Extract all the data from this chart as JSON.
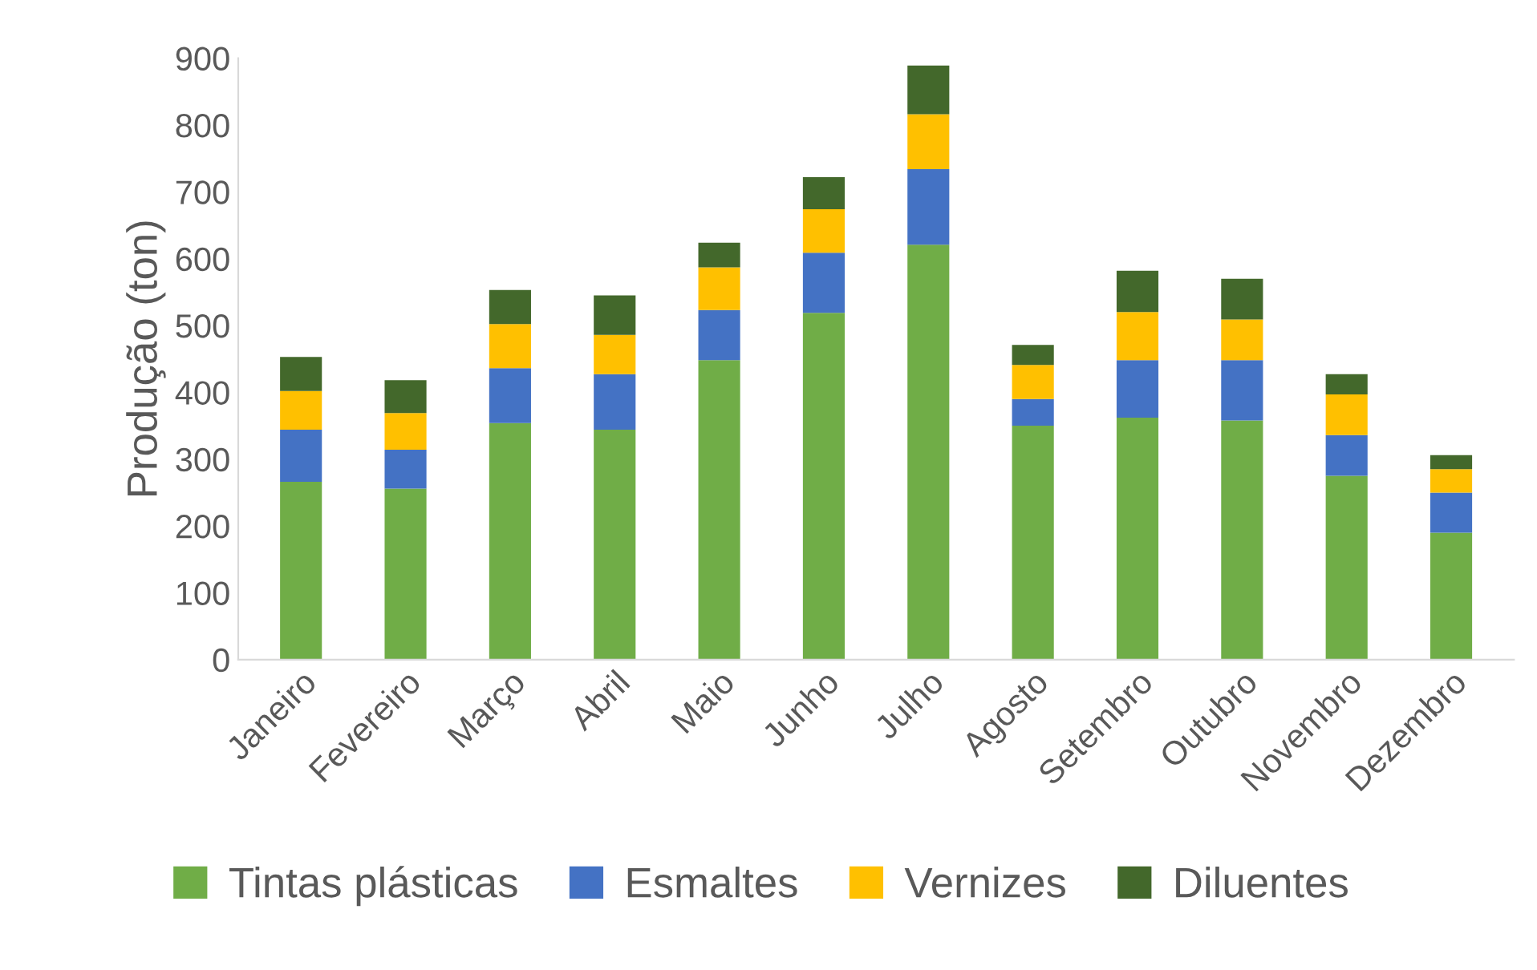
{
  "chart_data": {
    "type": "bar",
    "stacked": true,
    "ylabel": "Produção (ton)",
    "categories": [
      "Janeiro",
      "Fevereiro",
      "Março",
      "Abril",
      "Maio",
      "Junho",
      "Julho",
      "Agosto",
      "Setembro",
      "Outubro",
      "Novembro",
      "Dezembro"
    ],
    "series": [
      {
        "name": "Tintas plásticas",
        "color": "#70ad47",
        "values": [
          266,
          256,
          354,
          344,
          448,
          519,
          621,
          350,
          362,
          358,
          275,
          190
        ]
      },
      {
        "name": "Esmaltes",
        "color": "#4472c4",
        "values": [
          78,
          58,
          82,
          83,
          75,
          90,
          113,
          40,
          86,
          90,
          61,
          60
        ]
      },
      {
        "name": "Vernizes",
        "color": "#ffc000",
        "values": [
          58,
          55,
          66,
          59,
          64,
          65,
          82,
          51,
          72,
          61,
          61,
          35
        ]
      },
      {
        "name": "Diluentes",
        "color": "#43682b",
        "values": [
          51,
          49,
          51,
          59,
          37,
          48,
          73,
          30,
          62,
          61,
          30,
          21
        ]
      }
    ],
    "ylim": [
      0,
      900
    ],
    "yticks": [
      0,
      100,
      200,
      300,
      400,
      500,
      600,
      700,
      800,
      900
    ],
    "grid": false,
    "legend": "bottom"
  }
}
